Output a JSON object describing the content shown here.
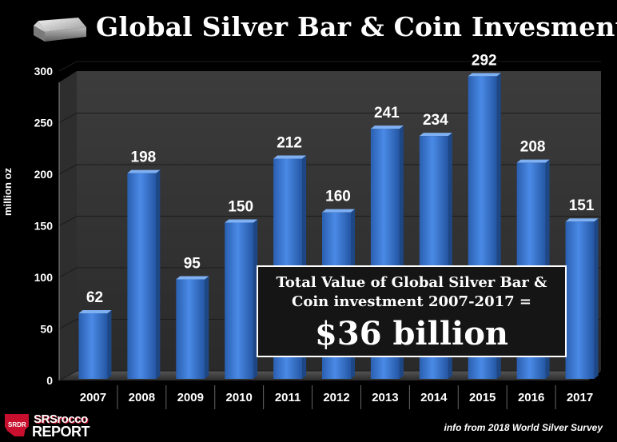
{
  "header": {
    "title": "Global Silver Bar & Coin Invesment"
  },
  "chart_data": {
    "type": "bar",
    "title": "Global Silver Bar & Coin Invesment",
    "ylabel": "million oz",
    "xlabel": "",
    "ylim": [
      0,
      300
    ],
    "yticks": [
      "0",
      "50",
      "100",
      "150",
      "200",
      "250",
      "300"
    ],
    "grid": true,
    "categories": [
      "2007",
      "2008",
      "2009",
      "2010",
      "2011",
      "2012",
      "2013",
      "2014",
      "2015",
      "2016",
      "2017"
    ],
    "values": [
      62,
      198,
      95,
      150,
      212,
      160,
      241,
      234,
      292,
      208,
      151
    ],
    "data_labels": [
      "62",
      "198",
      "95",
      "150",
      "212",
      "160",
      "241",
      "234",
      "292",
      "208",
      "151"
    ],
    "bar_color": "#3f7fd9",
    "background": "#000000",
    "plot_area_color": "#3a3a3a"
  },
  "callout": {
    "line1": "Total Value of Global Silver Bar &",
    "line2": "Coin investment 2007-2017 =",
    "big": "$36 billion"
  },
  "logo": {
    "icon_text": "SRDR",
    "line1": "SRSrocco",
    "line2": "REPORT"
  },
  "source_note": "info from 2018 World Silver Survey"
}
